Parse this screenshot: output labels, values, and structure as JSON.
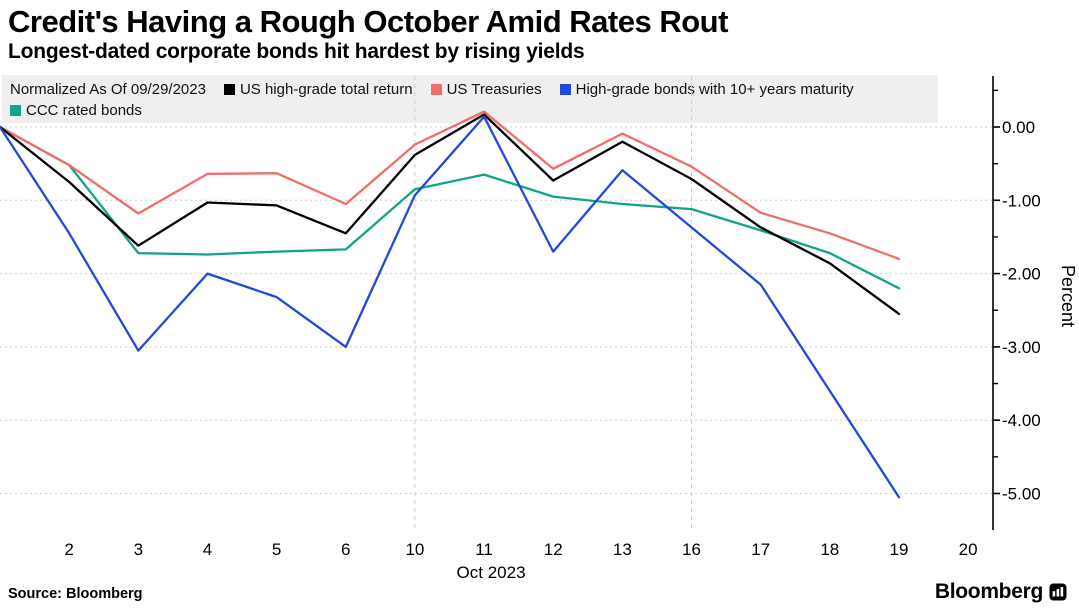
{
  "title": "Credit's Having a Rough October Amid Rates Rout",
  "subtitle": "Longest-dated corporate bonds hit hardest by rising yields",
  "legend": {
    "note": "Normalized As Of 09/29/2023"
  },
  "chart_data": {
    "type": "line",
    "x": [
      "09/29",
      "10/02",
      "10/03",
      "10/04",
      "10/05",
      "10/06",
      "10/10",
      "10/11",
      "10/12",
      "10/13",
      "10/16",
      "10/17",
      "10/18",
      "10/19"
    ],
    "x_tick_labels": [
      "2",
      "3",
      "4",
      "5",
      "6",
      "10",
      "11",
      "12",
      "13",
      "16",
      "17",
      "18",
      "19",
      "20"
    ],
    "x_axis_label": "Oct 2023",
    "ylabel": "Percent",
    "y_ticks": [
      "0.00",
      "-1.00",
      "-2.00",
      "-3.00",
      "-4.00",
      "-5.00"
    ],
    "y_minor_ticks": [
      0.5,
      -0.5,
      -1.5,
      -2.5,
      -3.5,
      -4.5,
      -5.5
    ],
    "ylim": [
      -5.5,
      0.7
    ],
    "grid": "horizontal dotted at majors; vertical dashed at week starts",
    "vertical_gridlines_at_labels": [
      "10",
      "16"
    ],
    "legend_position": "top",
    "series": [
      {
        "name": "US high-grade total return",
        "color": "#000000",
        "values": [
          0.0,
          -0.75,
          -1.62,
          -1.03,
          -1.07,
          -1.45,
          -0.38,
          0.17,
          -0.73,
          -0.2,
          -0.71,
          -1.37,
          -1.86,
          -2.55
        ]
      },
      {
        "name": "US Treasuries",
        "color": "#ef6e68",
        "values": [
          0.0,
          -0.52,
          -1.18,
          -0.64,
          -0.63,
          -1.05,
          -0.24,
          0.21,
          -0.57,
          -0.09,
          -0.54,
          -1.17,
          -1.45,
          -1.8
        ]
      },
      {
        "name": "High-grade bonds with 10+ years maturity",
        "color": "#2248dd",
        "values": [
          0.0,
          -1.45,
          -3.05,
          -2.0,
          -2.32,
          -3.0,
          -0.93,
          0.14,
          -1.7,
          -0.59,
          -1.37,
          -2.15,
          -3.6,
          -5.05
        ]
      },
      {
        "name": "CCC rated bonds",
        "color": "#11a489",
        "values": [
          0.0,
          -0.52,
          -1.72,
          -1.74,
          -1.7,
          -1.67,
          -0.85,
          -0.65,
          -0.95,
          -1.05,
          -1.12,
          -1.41,
          -1.72,
          -2.2
        ]
      }
    ],
    "colors": {
      "gridline": "#cdcdcd",
      "axis": "#000000",
      "legend_background": "#efefef"
    }
  },
  "footer": {
    "source": "Source: Bloomberg",
    "brand": "Bloomberg"
  }
}
